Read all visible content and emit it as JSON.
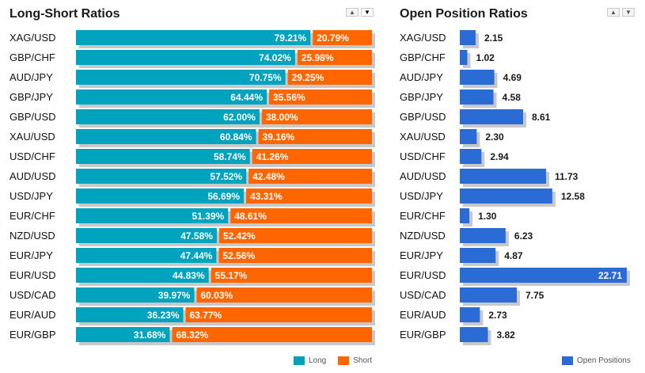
{
  "colors": {
    "long": "#00a3bd",
    "short": "#ff6600",
    "open": "#2a6bd6",
    "shadow": "#c8c8c8"
  },
  "left_panel": {
    "title": "Long-Short Ratios",
    "sort_up_icon": "▲",
    "sort_down_icon": "▼",
    "legend": {
      "long": "Long",
      "short": "Short"
    }
  },
  "right_panel": {
    "title": "Open Position Ratios",
    "sort_up_icon": "▲",
    "sort_down_icon": "▼",
    "legend": {
      "open": "Open Positions"
    }
  },
  "chart_data": [
    {
      "type": "bar",
      "orientation": "horizontal-stacked-100",
      "title": "Long-Short Ratios",
      "categories": [
        "XAG/USD",
        "GBP/CHF",
        "AUD/JPY",
        "GBP/JPY",
        "GBP/USD",
        "XAU/USD",
        "USD/CHF",
        "AUD/USD",
        "USD/JPY",
        "EUR/CHF",
        "NZD/USD",
        "EUR/JPY",
        "EUR/USD",
        "USD/CAD",
        "EUR/AUD",
        "EUR/GBP"
      ],
      "series": [
        {
          "name": "Long",
          "values": [
            79.21,
            74.02,
            70.75,
            64.44,
            62.0,
            60.84,
            58.74,
            57.52,
            56.69,
            51.39,
            47.58,
            47.44,
            44.83,
            39.97,
            36.23,
            31.68
          ]
        },
        {
          "name": "Short",
          "values": [
            20.79,
            25.98,
            29.25,
            35.56,
            38.0,
            39.16,
            41.26,
            42.48,
            43.31,
            48.61,
            52.42,
            52.56,
            55.17,
            60.03,
            63.77,
            68.32
          ]
        }
      ],
      "labels_long": [
        "79.21%",
        "74.02%",
        "70.75%",
        "64.44%",
        "62.00%",
        "60.84%",
        "58.74%",
        "57.52%",
        "56.69%",
        "51.39%",
        "47.58%",
        "47.44%",
        "44.83%",
        "39.97%",
        "36.23%",
        "31.68%"
      ],
      "labels_short": [
        "20.79%",
        "25.98%",
        "29.25%",
        "35.56%",
        "38.00%",
        "39.16%",
        "41.26%",
        "42.48%",
        "43.31%",
        "48.61%",
        "52.42%",
        "52.56%",
        "55.17%",
        "60.03%",
        "63.77%",
        "68.32%"
      ],
      "xlim": [
        0,
        100
      ],
      "legend_position": "bottom-right"
    },
    {
      "type": "bar",
      "orientation": "horizontal",
      "title": "Open Position Ratios",
      "categories": [
        "XAG/USD",
        "GBP/CHF",
        "AUD/JPY",
        "GBP/JPY",
        "GBP/USD",
        "XAU/USD",
        "USD/CHF",
        "AUD/USD",
        "USD/JPY",
        "EUR/CHF",
        "NZD/USD",
        "EUR/JPY",
        "EUR/USD",
        "USD/CAD",
        "EUR/AUD",
        "EUR/GBP"
      ],
      "series": [
        {
          "name": "Open Positions",
          "values": [
            2.15,
            1.02,
            4.69,
            4.58,
            8.61,
            2.3,
            2.94,
            11.73,
            12.58,
            1.3,
            6.23,
            4.87,
            22.71,
            7.75,
            2.73,
            3.82
          ]
        }
      ],
      "value_labels": [
        "2.15",
        "1.02",
        "4.69",
        "4.58",
        "8.61",
        "2.30",
        "2.94",
        "11.73",
        "12.58",
        "1.30",
        "6.23",
        "4.87",
        "22.71",
        "7.75",
        "2.73",
        "3.82"
      ],
      "xlim": [
        0,
        22.71
      ],
      "legend_position": "bottom-right"
    }
  ]
}
